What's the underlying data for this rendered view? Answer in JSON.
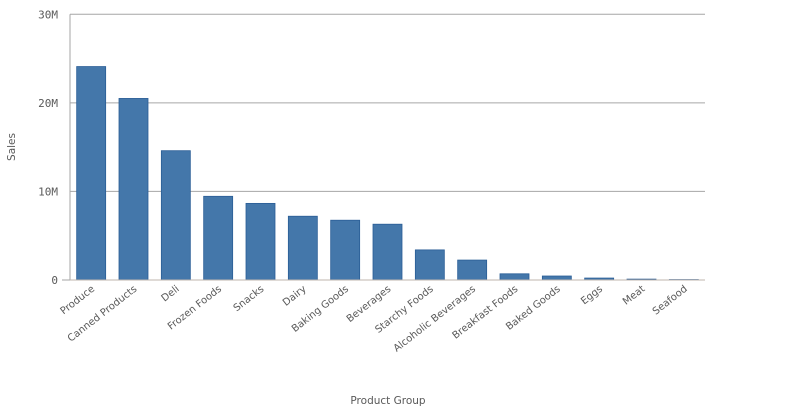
{
  "chart_data": {
    "type": "bar",
    "xlabel": "Product Group",
    "ylabel": "Sales",
    "ylim": [
      0,
      30000000
    ],
    "yticks": [
      0,
      10000000,
      20000000,
      30000000
    ],
    "ytick_labels": [
      "0",
      "10M",
      "20M",
      "30M"
    ],
    "grid": true,
    "bar_color": "#4477aa",
    "categories": [
      "Produce",
      "Canned Products",
      "Deli",
      "Frozen Foods",
      "Snacks",
      "Dairy",
      "Baking Goods",
      "Beverages",
      "Starchy Foods",
      "Alcoholic Beverages",
      "Breakfast Foods",
      "Baked Goods",
      "Eggs",
      "Meat",
      "Seafood"
    ],
    "values": [
      24100000,
      20500000,
      14600000,
      9450000,
      8650000,
      7200000,
      6750000,
      6300000,
      3400000,
      2250000,
      700000,
      450000,
      220000,
      100000,
      50000
    ]
  }
}
